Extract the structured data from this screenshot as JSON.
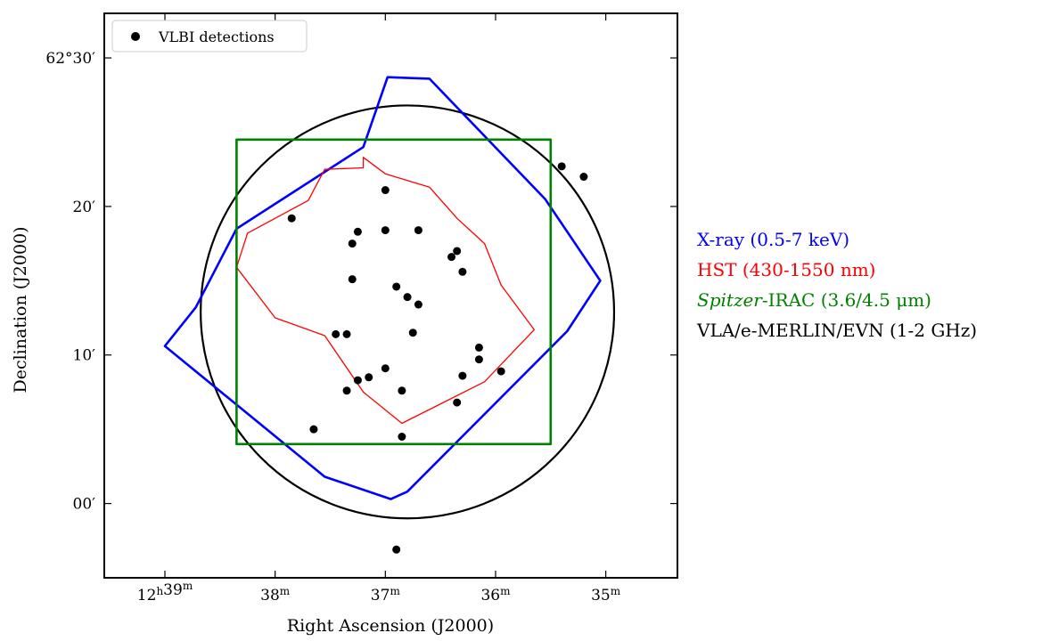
{
  "chart_data": {
    "type": "scatter",
    "title": "",
    "xlabel": "Right Ascension (J2000)",
    "ylabel": "Declination (J2000)",
    "x_unit": "minutes of RA after 12h",
    "y_unit": "arcmin offset from 62°00'",
    "xlim": [
      39.55,
      34.35
    ],
    "ylim": [
      -5,
      33
    ],
    "x_ticks": [
      {
        "value": 39,
        "label_main": "12",
        "sup1": "h",
        "label_mid": "39",
        "sup2": "m"
      },
      {
        "value": 38,
        "label_main": "",
        "sup1": "",
        "label_mid": "38",
        "sup2": "m"
      },
      {
        "value": 37,
        "label_main": "",
        "sup1": "",
        "label_mid": "37",
        "sup2": "m"
      },
      {
        "value": 36,
        "label_main": "",
        "sup1": "",
        "label_mid": "36",
        "sup2": "m"
      },
      {
        "value": 35,
        "label_main": "",
        "sup1": "",
        "label_mid": "35",
        "sup2": "m"
      }
    ],
    "y_ticks": [
      {
        "value": 0,
        "label": "00′"
      },
      {
        "value": 10,
        "label": "10′"
      },
      {
        "value": 20,
        "label": "20′"
      },
      {
        "value": 30,
        "label": "62°30′"
      }
    ],
    "legend": {
      "position": "top-left",
      "entries": [
        "VLBI detections"
      ]
    },
    "series": [
      {
        "name": "VLBI detections",
        "kind": "points",
        "color": "#000000",
        "points": [
          [
            35.4,
            22.7
          ],
          [
            35.2,
            22.0
          ],
          [
            37.85,
            19.2
          ],
          [
            37.25,
            18.3
          ],
          [
            37.0,
            18.4
          ],
          [
            36.7,
            18.4
          ],
          [
            37.3,
            17.5
          ],
          [
            36.35,
            17.0
          ],
          [
            36.4,
            16.6
          ],
          [
            36.3,
            15.6
          ],
          [
            37.3,
            15.1
          ],
          [
            36.9,
            14.6
          ],
          [
            36.8,
            13.9
          ],
          [
            36.7,
            13.4
          ],
          [
            37.45,
            11.4
          ],
          [
            37.35,
            11.4
          ],
          [
            36.75,
            11.5
          ],
          [
            36.15,
            10.5
          ],
          [
            36.15,
            9.7
          ],
          [
            37.0,
            9.1
          ],
          [
            35.95,
            8.9
          ],
          [
            37.15,
            8.5
          ],
          [
            37.25,
            8.3
          ],
          [
            36.85,
            7.6
          ],
          [
            37.35,
            7.6
          ],
          [
            36.35,
            6.8
          ],
          [
            36.3,
            8.6
          ],
          [
            37.65,
            5.0
          ],
          [
            36.85,
            4.5
          ],
          [
            36.9,
            -3.1
          ],
          [
            37.0,
            21.1
          ]
        ]
      },
      {
        "name": "X-ray (0.5-7 keV)",
        "kind": "polygon",
        "color": "#0000ff",
        "points": [
          [
            39.0,
            10.6
          ],
          [
            38.72,
            13.2
          ],
          [
            38.35,
            18.5
          ],
          [
            37.2,
            24.0
          ],
          [
            36.98,
            28.7
          ],
          [
            36.6,
            28.6
          ],
          [
            35.55,
            20.5
          ],
          [
            35.05,
            15.0
          ],
          [
            35.35,
            11.6
          ],
          [
            36.8,
            0.8
          ],
          [
            36.95,
            0.3
          ],
          [
            37.55,
            1.8
          ]
        ]
      },
      {
        "name": "HST (430-1550 nm)",
        "kind": "polygon",
        "color": "#ff0000",
        "points": [
          [
            38.35,
            15.9
          ],
          [
            38.25,
            18.2
          ],
          [
            37.7,
            20.4
          ],
          [
            37.55,
            22.5
          ],
          [
            37.2,
            22.6
          ],
          [
            37.2,
            23.3
          ],
          [
            37.0,
            22.2
          ],
          [
            36.6,
            21.3
          ],
          [
            36.35,
            19.2
          ],
          [
            36.1,
            17.5
          ],
          [
            35.95,
            14.7
          ],
          [
            35.65,
            11.7
          ],
          [
            36.1,
            8.2
          ],
          [
            36.85,
            5.4
          ],
          [
            37.2,
            7.5
          ],
          [
            37.55,
            11.3
          ],
          [
            38.0,
            12.5
          ]
        ]
      },
      {
        "name": "Spitzer-IRAC (3.6/4.5 μm)",
        "kind": "polygon",
        "color": "#008000",
        "points": [
          [
            38.35,
            24.5
          ],
          [
            35.5,
            24.5
          ],
          [
            35.5,
            4.0
          ],
          [
            38.35,
            4.0
          ]
        ]
      },
      {
        "name": "VLA/e-MERLIN/EVN (1-2 GHz)",
        "kind": "circle",
        "color": "#000000",
        "center": [
          36.8,
          12.9
        ],
        "radius_y": 13.9
      }
    ]
  },
  "side_legend": {
    "xray": {
      "label": "X-ray (0.5-7 keV)",
      "color": "#0000ff"
    },
    "hst": {
      "label": "HST (430-1550 nm)",
      "color": "#ff0000"
    },
    "spitzer_italic": "Spitzer",
    "spitzer_rest": "-IRAC (3.6/4.5 μm)",
    "spitzer_color": "#008000",
    "radio": {
      "label": "VLA/e-MERLIN/EVN (1-2 GHz)",
      "color": "#000000"
    }
  }
}
